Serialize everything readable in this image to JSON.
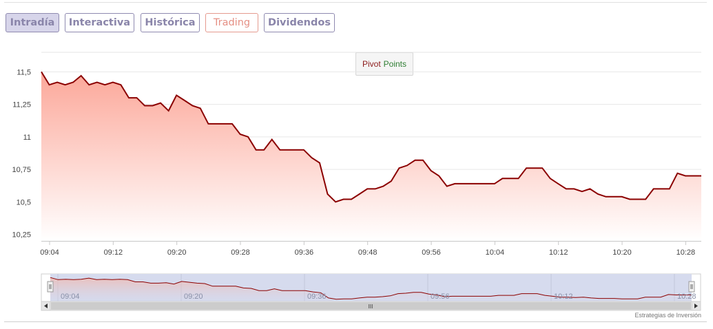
{
  "tabs": [
    {
      "label": "Intradía",
      "active": true
    },
    {
      "label": "Interactiva",
      "active": false
    },
    {
      "label": "Histórica",
      "active": false
    },
    {
      "label": "Trading",
      "active": false
    },
    {
      "label": "Dividendos",
      "active": false
    }
  ],
  "pivot": {
    "word1": "Pivot",
    "word2": "Points"
  },
  "credit": "Estrategias de Inversión",
  "navigator": {
    "tick_labels": [
      "09:04",
      "09:20",
      "09:36",
      "09:56",
      "10:12",
      "10:28"
    ],
    "scroll_handle": "III"
  },
  "colors": {
    "line": "#8b0000",
    "fill_top": "#fca799",
    "fill_bottom": "#ffffff",
    "tab_text": "#8a85aa",
    "tab_trading": "#e58f84",
    "pivot_word1": "#8b1a1a",
    "pivot_word2": "#2e7d32"
  },
  "chart_data": {
    "type": "area",
    "title": "",
    "xlabel": "",
    "ylabel": "",
    "ylim": [
      10.2,
      11.65
    ],
    "y_ticks": [
      "11,5",
      "11,25",
      "11",
      "10,75",
      "10,5",
      "10,25"
    ],
    "y_tick_values": [
      11.5,
      11.25,
      11.0,
      10.75,
      10.5,
      10.25
    ],
    "x_ticks": [
      "09:04",
      "09:12",
      "09:20",
      "09:28",
      "09:36",
      "09:48",
      "09:56",
      "10:04",
      "10:12",
      "10:20",
      "10:28"
    ],
    "grid": true,
    "series": [
      {
        "values": [
          11.5,
          11.4,
          11.42,
          11.4,
          11.42,
          11.47,
          11.4,
          11.42,
          11.4,
          11.42,
          11.4,
          11.3,
          11.3,
          11.24,
          11.24,
          11.26,
          11.2,
          11.32,
          11.28,
          11.24,
          11.22,
          11.1,
          11.1,
          11.1,
          11.1,
          11.02,
          11.0,
          10.9,
          10.9,
          10.98,
          10.9,
          10.9,
          10.9,
          10.9,
          10.84,
          10.8,
          10.56,
          10.5,
          10.52,
          10.52,
          10.56,
          10.6,
          10.6,
          10.62,
          10.66,
          10.76,
          10.78,
          10.82,
          10.82,
          10.74,
          10.7,
          10.62,
          10.64,
          10.64,
          10.64,
          10.64,
          10.64,
          10.64,
          10.68,
          10.68,
          10.68,
          10.76,
          10.76,
          10.76,
          10.68,
          10.64,
          10.6,
          10.6,
          10.58,
          10.6,
          10.56,
          10.54,
          10.54,
          10.54,
          10.52,
          10.52,
          10.52,
          10.6,
          10.6,
          10.6,
          10.72,
          10.7,
          10.7,
          10.7
        ]
      }
    ]
  }
}
